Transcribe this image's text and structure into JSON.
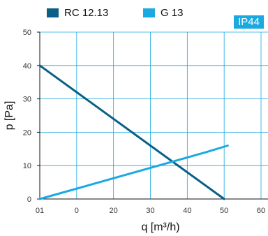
{
  "legend": [
    {
      "label": "RC 12.13",
      "color": "#0a5f86"
    },
    {
      "label": "G 13",
      "color": "#1aa9e1"
    }
  ],
  "badge": {
    "text": "IP44",
    "color": "#1aa9e1"
  },
  "chart_data": {
    "type": "line",
    "xlabel": "q [m³/h)",
    "ylabel": "p [Pa]",
    "xlim": [
      0,
      60
    ],
    "ylim": [
      0,
      50
    ],
    "x_ticks": [
      "01",
      "0",
      "20",
      "30",
      "40",
      "50",
      "60"
    ],
    "y_ticks": [
      "0",
      "10",
      "20",
      "30",
      "40",
      "50"
    ],
    "grid": true,
    "legend_position": "top-left",
    "series": [
      {
        "name": "RC 12.13",
        "color": "#0a5f86",
        "points": [
          [
            0,
            40
          ],
          [
            50,
            0
          ]
        ]
      },
      {
        "name": "G 13",
        "color": "#1aa9e1",
        "points": [
          [
            0,
            0
          ],
          [
            45,
            14
          ],
          [
            51,
            16
          ]
        ]
      }
    ]
  }
}
